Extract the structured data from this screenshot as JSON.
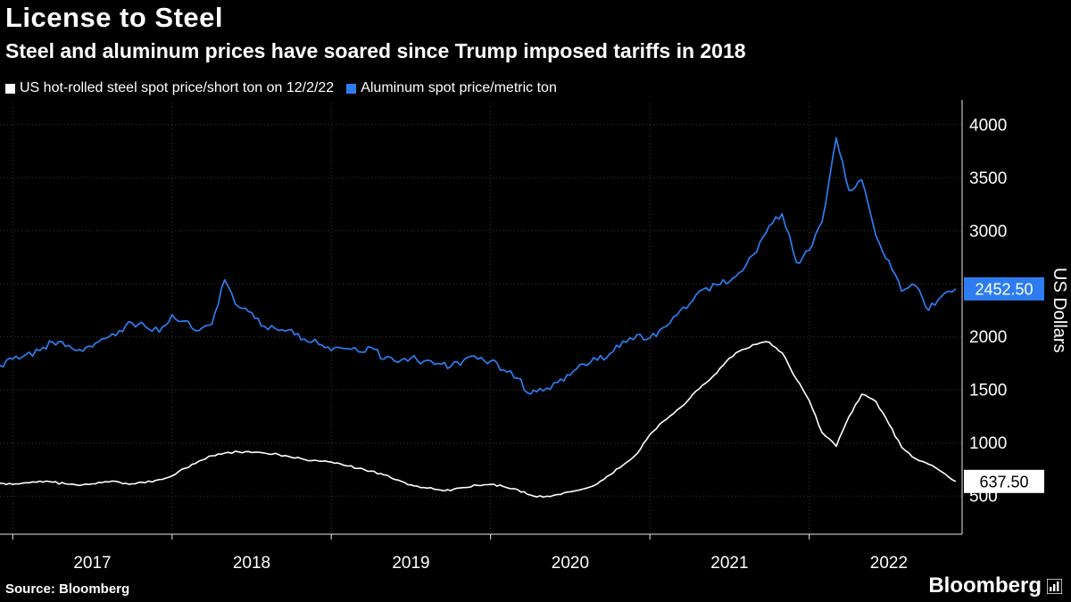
{
  "header": {
    "title": "License to Steel",
    "subtitle": "Steel and aluminum prices have soared since Trump imposed tariffs in 2018"
  },
  "footer": {
    "source": "Source: Bloomberg",
    "brand": "Bloomberg"
  },
  "colors": {
    "background": "#000000",
    "steel_line": "#ffffff",
    "aluminum_line": "#2d7df0",
    "grid": "#3a3a3a"
  },
  "chart_data": {
    "type": "line",
    "title": "License to Steel",
    "subtitle": "Steel and aluminum prices have soared since Trump imposed tariffs in 2018",
    "ylabel": "US Dollars",
    "xlabel": "",
    "grid": true,
    "legend_position": "top-left",
    "xlim": [
      2016.92,
      2022.96
    ],
    "ylim": [
      140,
      4200
    ],
    "y_ticks": [
      500,
      1000,
      1500,
      2000,
      2500,
      3000,
      3500,
      4000
    ],
    "x_ticks": [
      2017,
      2018,
      2019,
      2020,
      2021,
      2022
    ],
    "series": [
      {
        "name": "US hot-rolled steel spot price/short ton on 12/2/22",
        "color": "#ffffff",
        "badge_bg": "#ffffff",
        "badge_fg": "#000000",
        "last_label": "637.50",
        "jitter": 10,
        "width": 1.6,
        "x": [
          2016.92,
          2017.0,
          2017.08,
          2017.17,
          2017.25,
          2017.33,
          2017.42,
          2017.5,
          2017.58,
          2017.67,
          2017.75,
          2017.83,
          2017.92,
          2018.0,
          2018.08,
          2018.17,
          2018.25,
          2018.33,
          2018.42,
          2018.5,
          2018.58,
          2018.67,
          2018.75,
          2018.83,
          2018.92,
          2019.0,
          2019.08,
          2019.17,
          2019.25,
          2019.33,
          2019.42,
          2019.5,
          2019.58,
          2019.67,
          2019.75,
          2019.83,
          2019.92,
          2020.0,
          2020.08,
          2020.17,
          2020.25,
          2020.33,
          2020.42,
          2020.5,
          2020.58,
          2020.67,
          2020.75,
          2020.83,
          2020.92,
          2021.0,
          2021.08,
          2021.17,
          2021.25,
          2021.33,
          2021.42,
          2021.5,
          2021.58,
          2021.67,
          2021.75,
          2021.83,
          2021.92,
          2022.0,
          2022.08,
          2022.17,
          2022.25,
          2022.33,
          2022.42,
          2022.5,
          2022.58,
          2022.67,
          2022.75,
          2022.83,
          2022.92
        ],
        "y": [
          620,
          610,
          625,
          640,
          630,
          615,
          600,
          615,
          635,
          630,
          615,
          625,
          655,
          690,
          760,
          830,
          880,
          905,
          915,
          910,
          905,
          890,
          865,
          845,
          830,
          820,
          790,
          760,
          735,
          700,
          650,
          605,
          580,
          560,
          550,
          580,
          600,
          610,
          590,
          560,
          510,
          490,
          515,
          540,
          565,
          615,
          700,
          790,
          900,
          1080,
          1200,
          1310,
          1420,
          1545,
          1660,
          1800,
          1880,
          1930,
          1950,
          1850,
          1600,
          1400,
          1100,
          970,
          1250,
          1460,
          1390,
          1180,
          960,
          850,
          800,
          730,
          637.5
        ]
      },
      {
        "name": "Aluminum spot price/metric ton",
        "color": "#2d7df0",
        "badge_bg": "#2d7df0",
        "badge_fg": "#ffffff",
        "last_label": "2452.50",
        "jitter": 36,
        "width": 1.7,
        "x": [
          2016.92,
          2017.0,
          2017.08,
          2017.17,
          2017.25,
          2017.33,
          2017.42,
          2017.5,
          2017.58,
          2017.67,
          2017.75,
          2017.83,
          2017.92,
          2018.0,
          2018.08,
          2018.17,
          2018.25,
          2018.33,
          2018.42,
          2018.5,
          2018.58,
          2018.67,
          2018.75,
          2018.83,
          2018.92,
          2019.0,
          2019.08,
          2019.17,
          2019.25,
          2019.33,
          2019.42,
          2019.5,
          2019.58,
          2019.67,
          2019.75,
          2019.83,
          2019.92,
          2020.0,
          2020.08,
          2020.17,
          2020.25,
          2020.33,
          2020.42,
          2020.5,
          2020.58,
          2020.67,
          2020.75,
          2020.83,
          2020.92,
          2021.0,
          2021.08,
          2021.17,
          2021.25,
          2021.33,
          2021.42,
          2021.5,
          2021.58,
          2021.67,
          2021.75,
          2021.83,
          2021.92,
          2022.0,
          2022.08,
          2022.17,
          2022.25,
          2022.33,
          2022.42,
          2022.5,
          2022.58,
          2022.67,
          2022.75,
          2022.83,
          2022.92
        ],
        "y": [
          1730,
          1790,
          1830,
          1870,
          1950,
          1910,
          1880,
          1905,
          1985,
          2060,
          2130,
          2100,
          2045,
          2210,
          2150,
          2060,
          2120,
          2537,
          2280,
          2230,
          2100,
          2060,
          2070,
          1980,
          1930,
          1870,
          1890,
          1860,
          1900,
          1790,
          1760,
          1800,
          1770,
          1750,
          1720,
          1780,
          1790,
          1772,
          1690,
          1610,
          1460,
          1490,
          1570,
          1640,
          1745,
          1780,
          1845,
          1960,
          2020,
          1990,
          2085,
          2205,
          2310,
          2445,
          2490,
          2520,
          2620,
          2800,
          3050,
          3160,
          2700,
          2815,
          3080,
          3875,
          3380,
          3480,
          2950,
          2720,
          2430,
          2480,
          2250,
          2380,
          2452.5
        ]
      }
    ]
  }
}
